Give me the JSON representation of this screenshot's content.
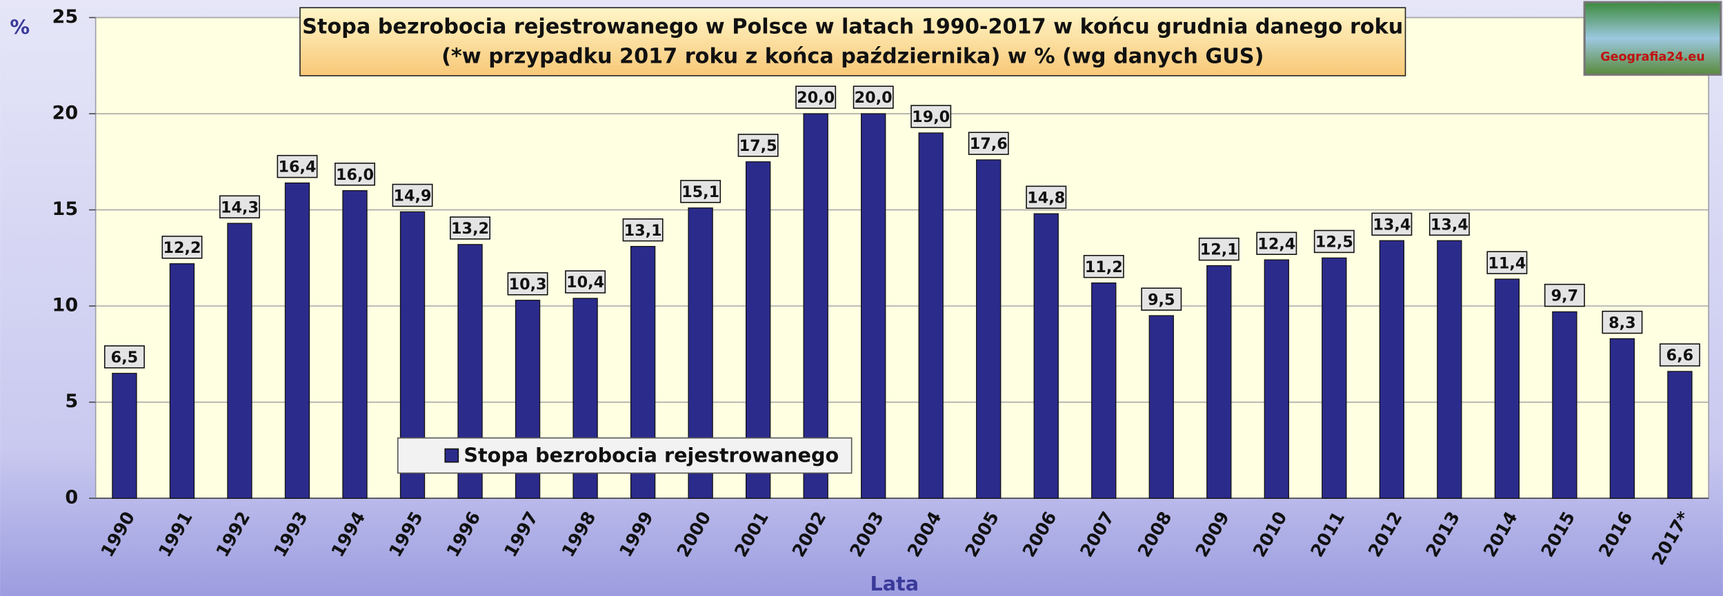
{
  "chart_data": {
    "type": "bar",
    "title": "Stopa bezrobocia rejestrowanego w Polsce w latach 1990-2017 w końcu grudnia danego roku",
    "subtitle": "(*w przypadku 2017 roku z końca października) w % (wg danych GUS)",
    "y_label": "%",
    "x_label": "Lata",
    "categories": [
      "1990",
      "1991",
      "1992",
      "1993",
      "1994",
      "1995",
      "1996",
      "1997",
      "1998",
      "1999",
      "2000",
      "2001",
      "2002",
      "2003",
      "2004",
      "2005",
      "2006",
      "2007",
      "2008",
      "2009",
      "2010",
      "2011",
      "2012",
      "2013",
      "2014",
      "2015",
      "2016",
      "2017*"
    ],
    "series": [
      {
        "name": "Stopa bezrobocia rejestrowanego",
        "color": "#2b2b8c",
        "values": [
          6.5,
          12.2,
          14.3,
          16.4,
          16.0,
          14.9,
          13.2,
          10.3,
          10.4,
          13.1,
          15.1,
          17.5,
          20.0,
          20.0,
          19.0,
          17.6,
          14.8,
          11.2,
          9.5,
          12.1,
          12.4,
          12.5,
          13.4,
          13.4,
          11.4,
          9.7,
          8.3,
          6.6
        ],
        "value_labels": [
          "6,5",
          "12,2",
          "14,3",
          "16,4",
          "16,0",
          "14,9",
          "13,2",
          "10,3",
          "10,4",
          "13,1",
          "15,1",
          "17,5",
          "20,0",
          "20,0",
          "19,0",
          "17,6",
          "14,8",
          "11,2",
          "9,5",
          "12,1",
          "12,4",
          "12,5",
          "13,4",
          "13,4",
          "11,4",
          "9,7",
          "8,3",
          "6,6"
        ]
      }
    ],
    "ylim": [
      0,
      25
    ],
    "yticks": [
      0,
      5,
      10,
      15,
      20,
      25
    ],
    "grid": true,
    "legend": true
  },
  "logo": {
    "text": "Geografia24.eu"
  }
}
